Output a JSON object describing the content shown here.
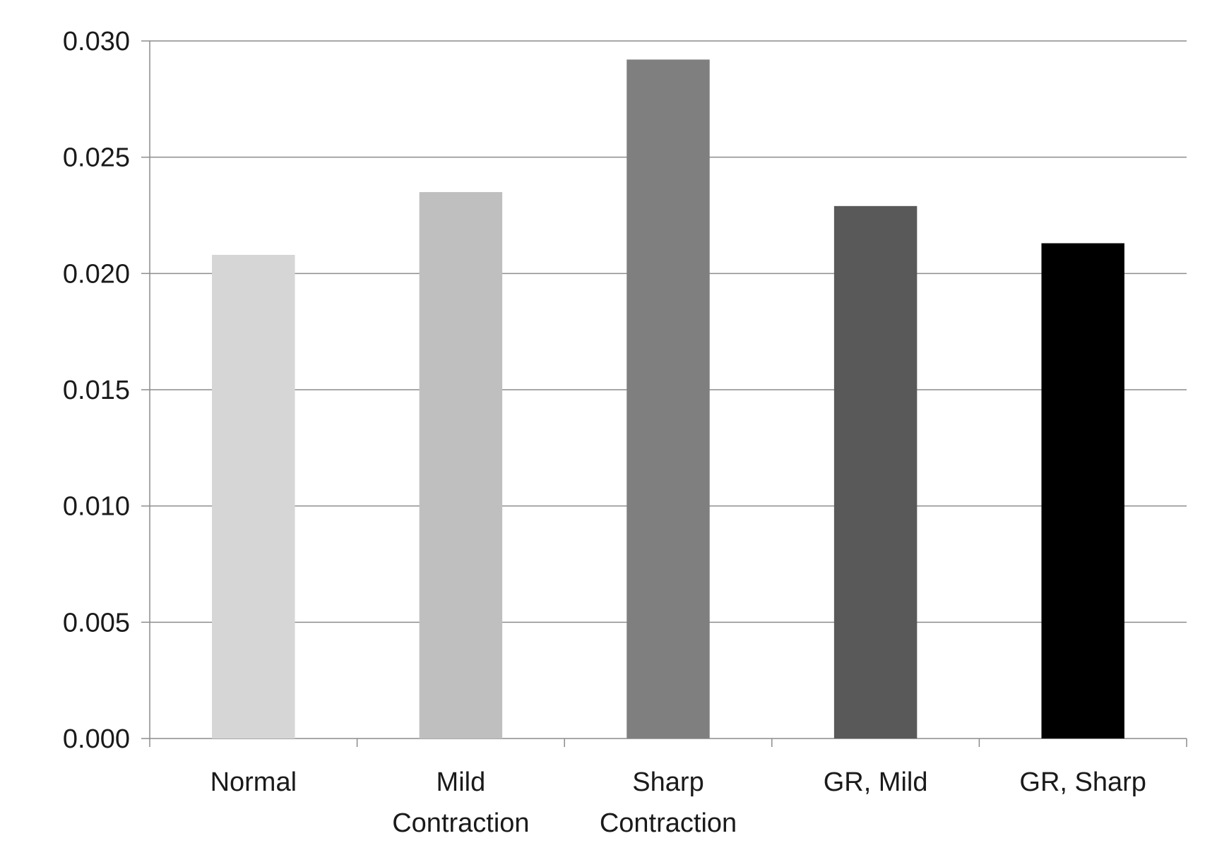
{
  "chart_data": {
    "type": "bar",
    "title": "",
    "xlabel": "",
    "ylabel": "",
    "categories": [
      [
        "Normal"
      ],
      [
        "Mild",
        "Contraction"
      ],
      [
        "Sharp",
        "Contraction"
      ],
      [
        "GR, Mild"
      ],
      [
        "GR, Sharp"
      ]
    ],
    "values": [
      0.0208,
      0.0235,
      0.0292,
      0.0229,
      0.0213
    ],
    "colors": [
      "#d6d6d6",
      "#bfbfbf",
      "#7f7f7f",
      "#595959",
      "#000000"
    ],
    "ylim": [
      0,
      0.03
    ],
    "yticks": [
      "0.000",
      "0.005",
      "0.010",
      "0.015",
      "0.020",
      "0.025",
      "0.030"
    ],
    "grid": true,
    "legend": "none"
  }
}
